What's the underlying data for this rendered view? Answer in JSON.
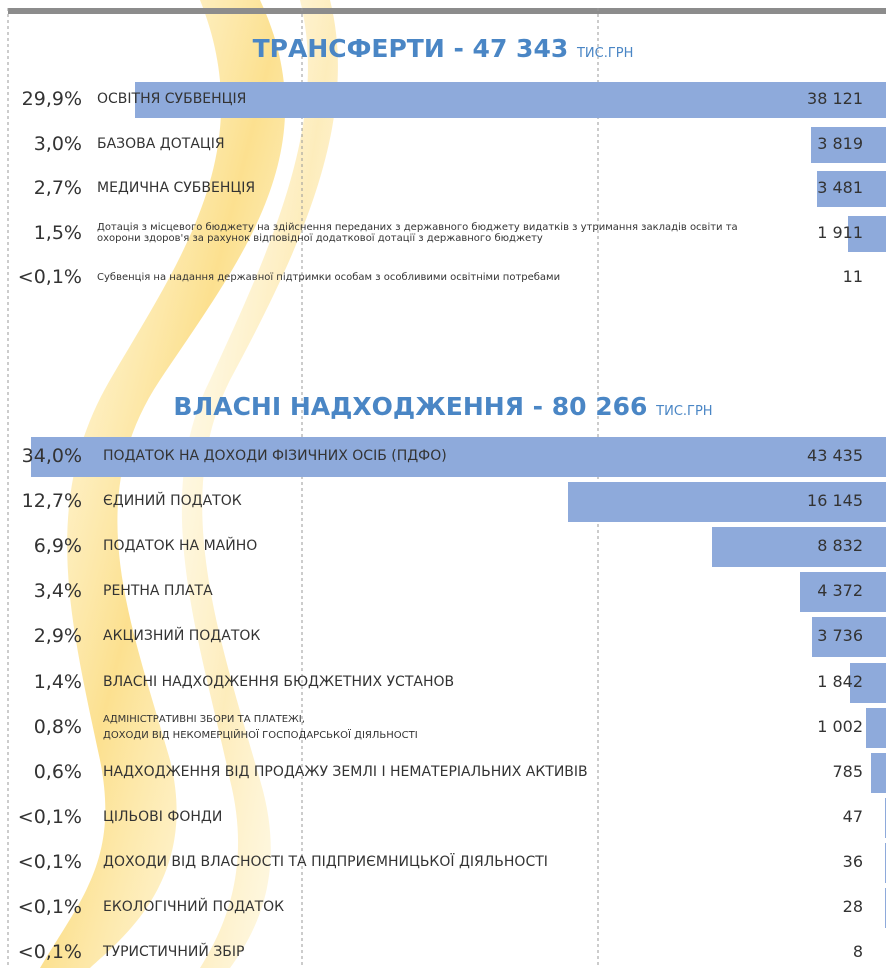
{
  "chart_data": [
    {
      "type": "bar",
      "title": "ТРАНСФЕРТИ - 47 343",
      "unit": "ТИС.ГРН",
      "color": "#8eaadb",
      "xlim": [
        0,
        45000
      ],
      "shares": [
        "29,9%",
        "3,0%",
        "2,7%",
        "1,5%",
        "<0,1%"
      ],
      "categories": [
        "ОСВІТНЯ СУБВЕНЦІЯ",
        "БАЗОВА ДОТАЦІЯ",
        "МЕДИЧНА СУБВЕНЦІЯ",
        "Дотація з місцевого бюджету на здійснення переданих з державного бюджету видатків з утримання закладів освіти та охорони здоров'я за рахунок відповідної додаткової дотації з державного бюджету",
        "Субвенція на надання державної підтримки особам з особливими освітніми потребами"
      ],
      "values": [
        38121,
        3819,
        3481,
        1911,
        11
      ],
      "value_labels": [
        "38 121",
        "3 819",
        "3 481",
        "1 911",
        "11"
      ]
    },
    {
      "type": "bar",
      "title": "ВЛАСНІ НАДХОДЖЕННЯ - 80 266",
      "unit": "ТИС.ГРН",
      "color": "#8eaadb",
      "xlim": [
        0,
        45000
      ],
      "shares": [
        "34,0%",
        "12,7%",
        "6,9%",
        "3,4%",
        "2,9%",
        "1,4%",
        "0,8%",
        "0,6%",
        "<0,1%",
        "<0,1%",
        "<0,1%",
        "<0,1%"
      ],
      "categories": [
        "ПОДАТОК НА ДОХОДИ ФІЗИЧНИХ ОСІБ (ПДФО)",
        "ЄДИНИЙ ПОДАТОК",
        "ПОДАТОК НА МАЙНО",
        "РЕНТНА ПЛАТА",
        "АКЦИЗНИЙ ПОДАТОК",
        "ВЛАСНІ НАДХОДЖЕННЯ БЮДЖЕТНИХ УСТАНОВ",
        "АДМІНІСТРАТИВНІ ЗБОРИ ТА ПЛАТЕЖІ,\nДОХОДИ ВІД НЕКОМЕРЦІЙНОЇ ГОСПОДАРСЬКОЇ ДІЯЛЬНОСТІ",
        "НАДХОДЖЕННЯ ВІД ПРОДАЖУ ЗЕМЛІ І НЕМАТЕРІАЛЬНИХ АКТИВІВ",
        "ЦІЛЬОВІ ФОНДИ",
        "ДОХОДИ ВІД ВЛАСНОСТІ ТА ПІДПРИЄМНИЦЬКОЇ ДІЯЛЬНОСТІ",
        "ЕКОЛОГІЧНИЙ ПОДАТОК",
        "ТУРИСТИЧНИЙ ЗБІР"
      ],
      "values": [
        43435,
        16145,
        8832,
        4372,
        3736,
        1842,
        1002,
        785,
        47,
        36,
        28,
        8
      ],
      "value_labels": [
        "43 435",
        "16 145",
        "8 832",
        "4 372",
        "3 736",
        "1 842",
        "1 002",
        "785",
        "47",
        "36",
        "28",
        "8"
      ]
    }
  ]
}
